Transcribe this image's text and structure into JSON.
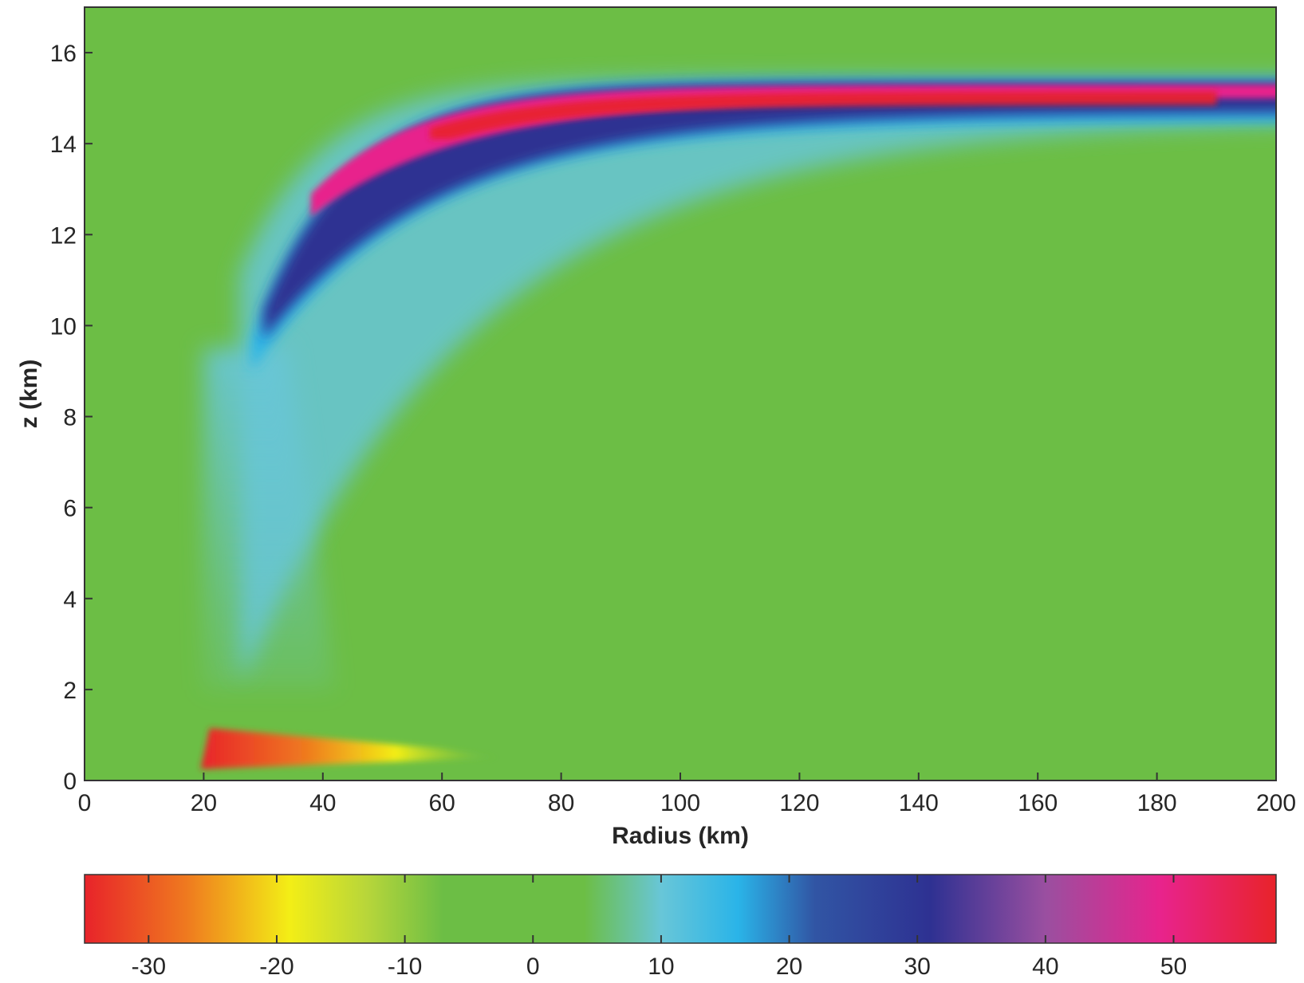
{
  "chart_data": {
    "type": "heatmap",
    "title": "",
    "xlabel": "Radius (km)",
    "ylabel": "z (km)",
    "xlim": [
      0,
      200
    ],
    "ylim": [
      0,
      17
    ],
    "xticks": [
      0,
      20,
      40,
      60,
      80,
      100,
      120,
      140,
      160,
      180,
      200
    ],
    "yticks": [
      0,
      2,
      4,
      6,
      8,
      10,
      12,
      14,
      16
    ],
    "grid": false,
    "colorbar": {
      "orientation": "horizontal",
      "position": "bottom",
      "range": [
        -35,
        58
      ],
      "ticks": [
        -30,
        -20,
        -10,
        0,
        10,
        20,
        30,
        40,
        50
      ],
      "colormap": [
        {
          "value": -35,
          "color": "#e8232a"
        },
        {
          "value": -27,
          "color": "#ef7a1f"
        },
        {
          "value": -19,
          "color": "#f3ee16"
        },
        {
          "value": -13,
          "color": "#b8d63a"
        },
        {
          "value": -7,
          "color": "#6cbe45"
        },
        {
          "value": 4,
          "color": "#6cbe45"
        },
        {
          "value": 10,
          "color": "#68c6d8"
        },
        {
          "value": 16,
          "color": "#2ab4e8"
        },
        {
          "value": 22,
          "color": "#3155a4"
        },
        {
          "value": 31,
          "color": "#2e3192"
        },
        {
          "value": 40,
          "color": "#9a4fa0"
        },
        {
          "value": 49,
          "color": "#e8238c"
        },
        {
          "value": 58,
          "color": "#e8232a"
        }
      ]
    },
    "features": [
      {
        "description": "upper-level outflow jet, maximum",
        "r_km": [
          60,
          200
        ],
        "z_km": [
          14.6,
          15.3
        ],
        "value": 55
      },
      {
        "description": "positive region along eyewall-to-outflow band",
        "r_km": [
          28,
          200
        ],
        "z_km": [
          9,
          15.4
        ],
        "value": 30
      },
      {
        "description": "weak positive tail near eyewall",
        "r_km": [
          20,
          40
        ],
        "z_km": [
          2,
          9
        ],
        "value": 8
      },
      {
        "description": "low-level inflow minimum",
        "r_km": [
          20,
          60
        ],
        "z_km": [
          0.2,
          1.2
        ],
        "value": -33
      }
    ]
  }
}
